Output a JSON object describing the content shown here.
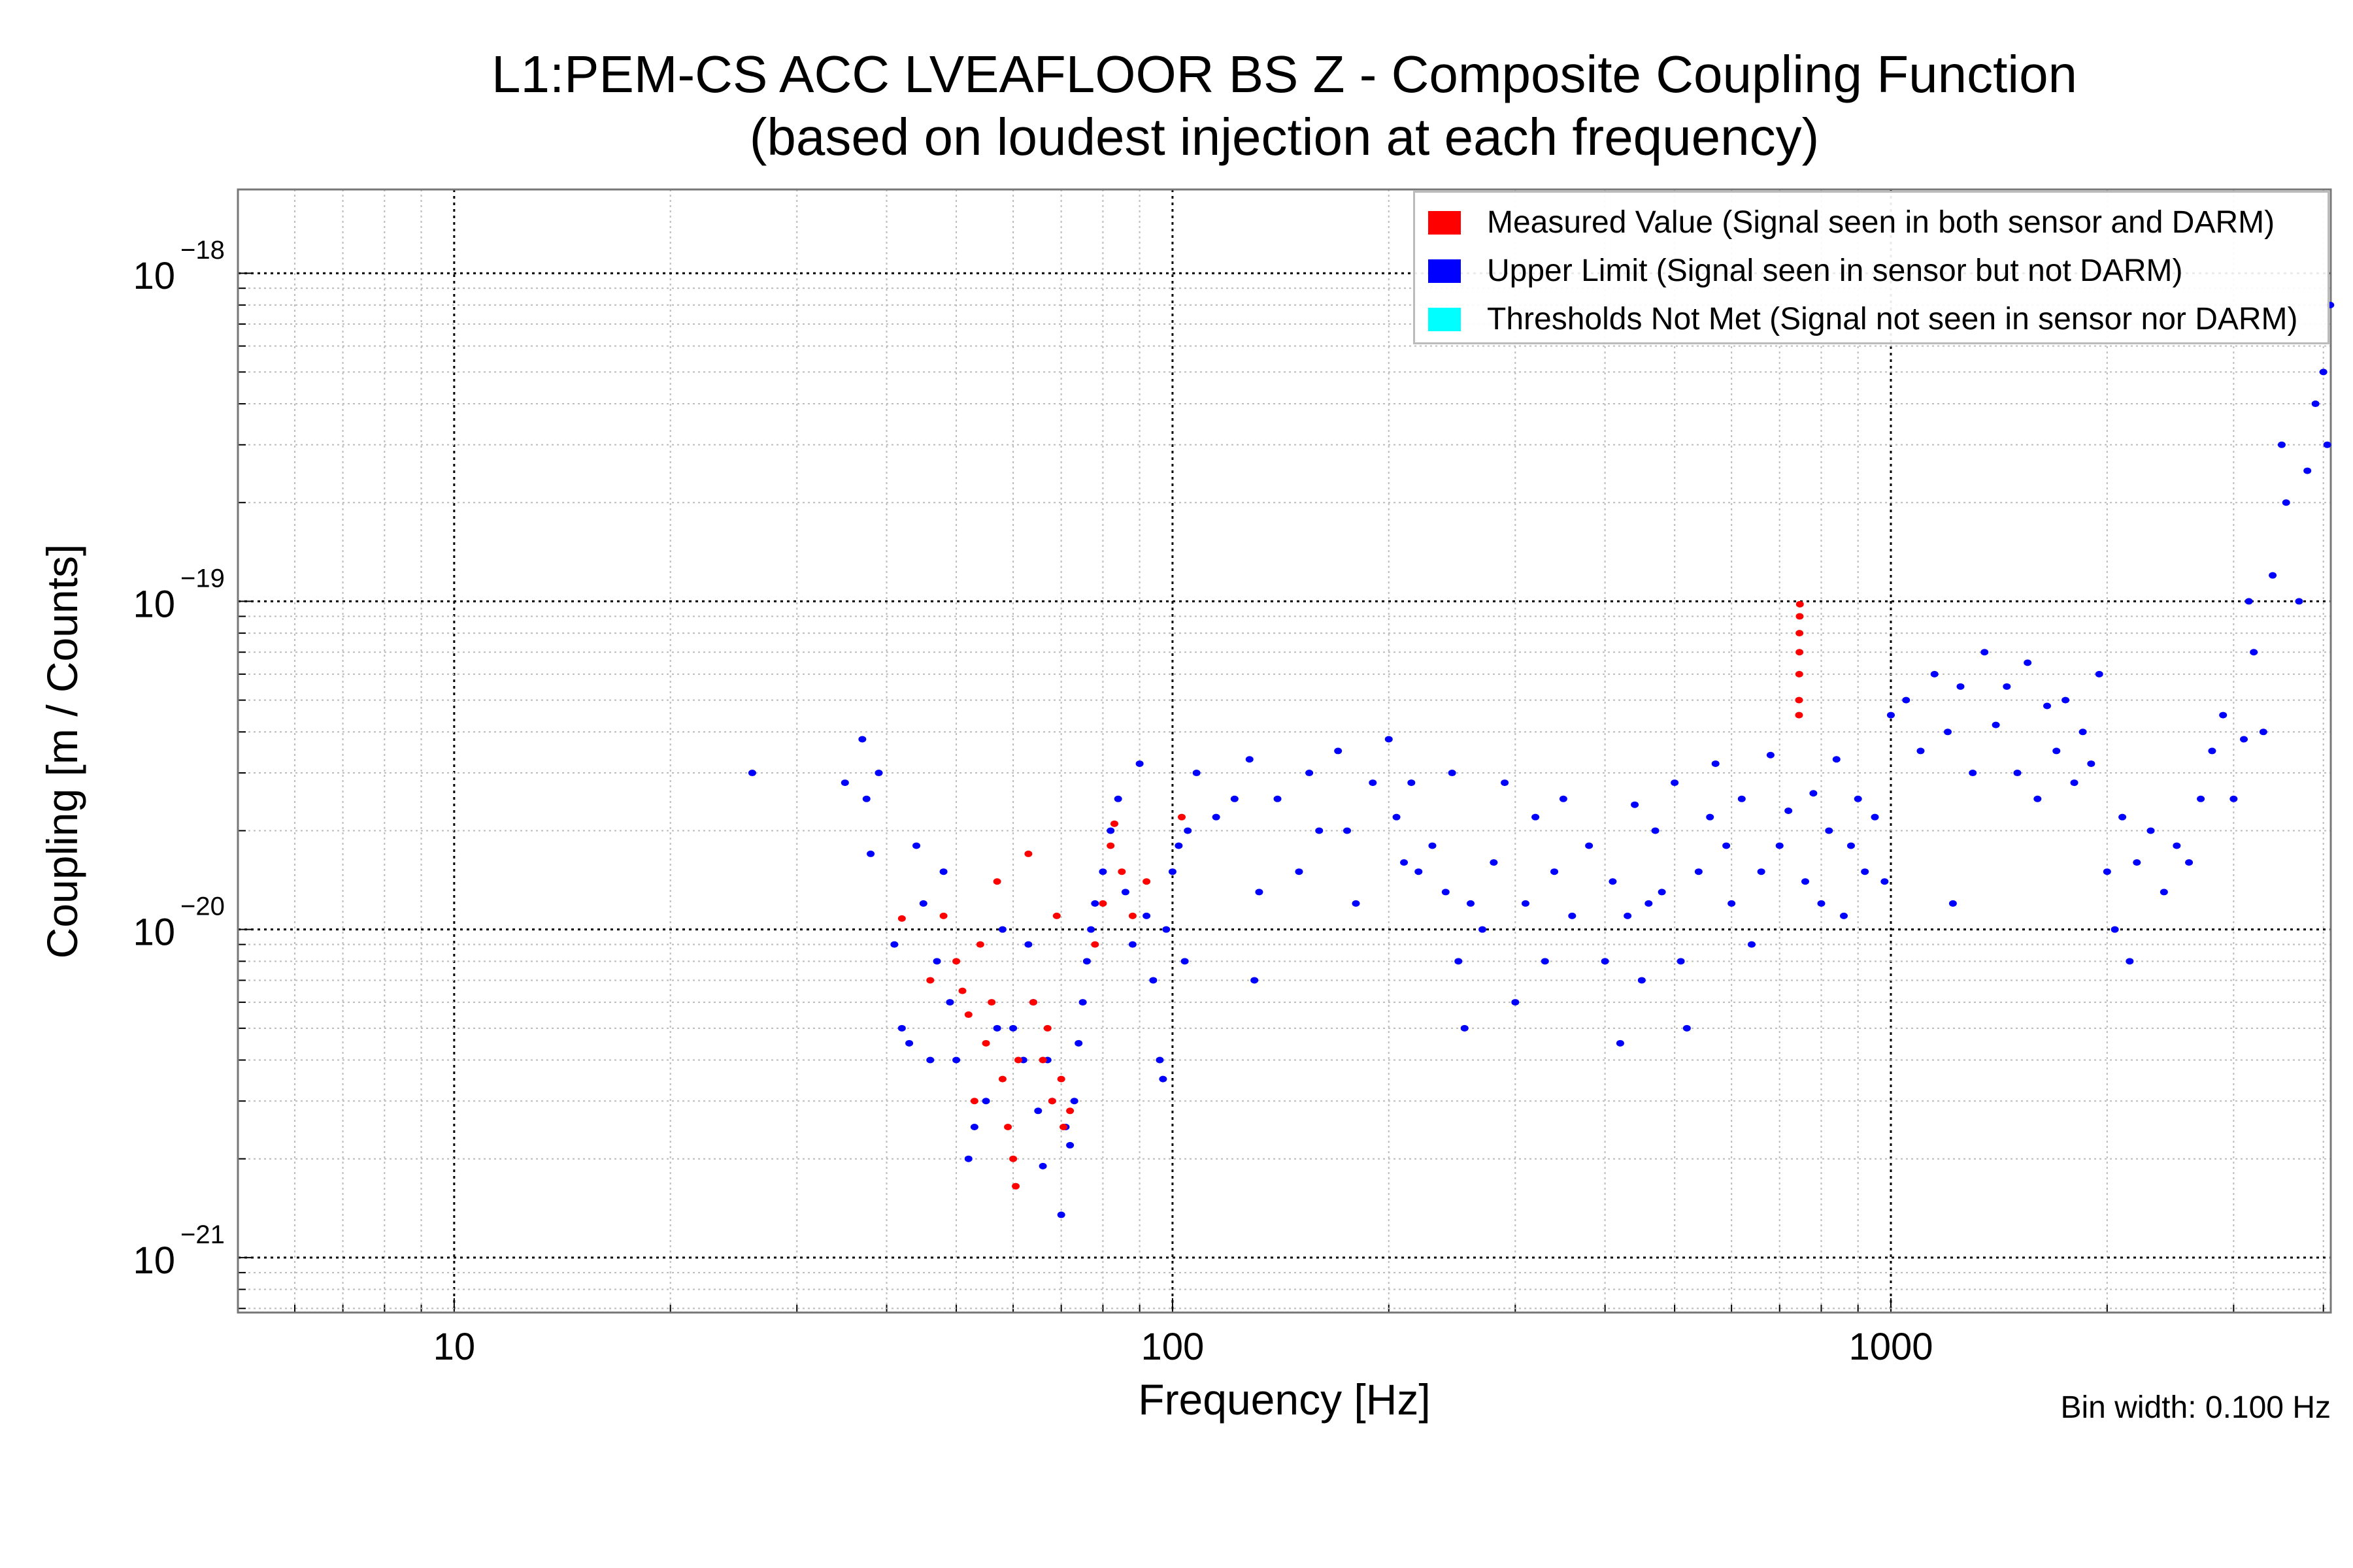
{
  "chart_data": {
    "type": "scatter",
    "title": [
      "L1:PEM-CS ACC LVEAFLOOR BS Z - Composite Coupling Function",
      "(based on loudest injection at each frequency)"
    ],
    "xlabel": "Frequency [Hz]",
    "ylabel": "Coupling [m / Counts]",
    "annotation": "Bin width: 0.100 Hz",
    "x_scale": "log",
    "y_scale": "log",
    "xlim": [
      5,
      4096
    ],
    "ylim": [
      6.8e-22,
      1.8e-18
    ],
    "x_ticks": [
      10,
      100,
      1000
    ],
    "x_tick_labels": [
      "10",
      "100",
      "1000"
    ],
    "y_ticks": [
      1e-18,
      1e-19,
      1e-20,
      1e-21
    ],
    "y_tick_labels": [
      {
        "base": "10",
        "exp": "−18"
      },
      {
        "base": "10",
        "exp": "−19"
      },
      {
        "base": "10",
        "exp": "−20"
      },
      {
        "base": "10",
        "exp": "−21"
      }
    ],
    "grid": true,
    "legend_position": "top-right",
    "series": [
      {
        "name": "Measured Value (Signal seen in both sensor and DARM)",
        "color": "#ff0000",
        "points": [
          [
            42,
            1.08e-20
          ],
          [
            46,
            7e-21
          ],
          [
            48,
            1.1e-20
          ],
          [
            50,
            8e-21
          ],
          [
            51,
            6.5e-21
          ],
          [
            52,
            5.5e-21
          ],
          [
            53,
            3e-21
          ],
          [
            54,
            9e-21
          ],
          [
            55,
            4.5e-21
          ],
          [
            56,
            6e-21
          ],
          [
            57,
            1.4e-20
          ],
          [
            58,
            3.5e-21
          ],
          [
            59,
            2.5e-21
          ],
          [
            60,
            2e-21
          ],
          [
            60.5,
            1.65e-21
          ],
          [
            61,
            4e-21
          ],
          [
            63,
            1.7e-20
          ],
          [
            64,
            6e-21
          ],
          [
            66,
            4e-21
          ],
          [
            67,
            5e-21
          ],
          [
            68,
            3e-21
          ],
          [
            69,
            1.1e-20
          ],
          [
            70,
            3.5e-21
          ],
          [
            70.5,
            2.5e-21
          ],
          [
            72,
            2.8e-21
          ],
          [
            78,
            9e-21
          ],
          [
            80,
            1.2e-20
          ],
          [
            82,
            1.8e-20
          ],
          [
            83,
            2.1e-20
          ],
          [
            85,
            1.5e-20
          ],
          [
            88,
            1.1e-20
          ],
          [
            92,
            1.4e-20
          ],
          [
            103,
            2.2e-20
          ],
          [
            745,
            4.5e-20
          ],
          [
            745,
            5e-20
          ],
          [
            745.5,
            6e-20
          ],
          [
            746,
            7e-20
          ],
          [
            746,
            8e-20
          ],
          [
            746.5,
            9e-20
          ],
          [
            747,
            9.8e-20
          ]
        ]
      },
      {
        "name": "Upper Limit (Signal seen in sensor but not DARM)",
        "color": "#0000ff",
        "points": [
          [
            26,
            3e-20
          ],
          [
            35,
            2.8e-20
          ],
          [
            37,
            3.8e-20
          ],
          [
            37.5,
            2.5e-20
          ],
          [
            38,
            1.7e-20
          ],
          [
            39,
            3e-20
          ],
          [
            41,
            9e-21
          ],
          [
            42,
            5e-21
          ],
          [
            43,
            4.5e-21
          ],
          [
            44,
            1.8e-20
          ],
          [
            45,
            1.2e-20
          ],
          [
            46,
            4e-21
          ],
          [
            47,
            8e-21
          ],
          [
            48,
            1.5e-20
          ],
          [
            49,
            6e-21
          ],
          [
            50,
            4e-21
          ],
          [
            52,
            2e-21
          ],
          [
            53,
            2.5e-21
          ],
          [
            55,
            3e-21
          ],
          [
            57,
            5e-21
          ],
          [
            58,
            1e-20
          ],
          [
            60,
            5e-21
          ],
          [
            62,
            4e-21
          ],
          [
            63,
            9e-21
          ],
          [
            64,
            6e-21
          ],
          [
            65,
            2.8e-21
          ],
          [
            66,
            1.9e-21
          ],
          [
            67,
            4e-21
          ],
          [
            68,
            3e-21
          ],
          [
            70,
            1.35e-21
          ],
          [
            71,
            2.5e-21
          ],
          [
            72,
            2.2e-21
          ],
          [
            73,
            3e-21
          ],
          [
            74,
            4.5e-21
          ],
          [
            75,
            6e-21
          ],
          [
            76,
            8e-21
          ],
          [
            77,
            1e-20
          ],
          [
            78,
            1.2e-20
          ],
          [
            80,
            1.5e-20
          ],
          [
            82,
            2e-20
          ],
          [
            84,
            2.5e-20
          ],
          [
            86,
            1.3e-20
          ],
          [
            88,
            9e-21
          ],
          [
            90,
            3.2e-20
          ],
          [
            92,
            1.1e-20
          ],
          [
            94,
            7e-21
          ],
          [
            96,
            4e-21
          ],
          [
            97,
            3.5e-21
          ],
          [
            98,
            1e-20
          ],
          [
            100,
            1.5e-20
          ],
          [
            102,
            1.8e-20
          ],
          [
            104,
            8e-21
          ],
          [
            105,
            2e-20
          ],
          [
            108,
            3e-20
          ],
          [
            115,
            2.2e-20
          ],
          [
            122,
            2.5e-20
          ],
          [
            128,
            3.3e-20
          ],
          [
            130,
            7e-21
          ],
          [
            132,
            1.3e-20
          ],
          [
            140,
            2.5e-20
          ],
          [
            150,
            1.5e-20
          ],
          [
            155,
            3e-20
          ],
          [
            160,
            2e-20
          ],
          [
            170,
            3.5e-20
          ],
          [
            175,
            2e-20
          ],
          [
            180,
            1.2e-20
          ],
          [
            190,
            2.8e-20
          ],
          [
            200,
            3.8e-20
          ],
          [
            205,
            2.2e-20
          ],
          [
            210,
            1.6e-20
          ],
          [
            215,
            2.8e-20
          ],
          [
            220,
            1.5e-20
          ],
          [
            230,
            1.8e-20
          ],
          [
            240,
            1.3e-20
          ],
          [
            245,
            3e-20
          ],
          [
            250,
            8e-21
          ],
          [
            255,
            5e-21
          ],
          [
            260,
            1.2e-20
          ],
          [
            270,
            1e-20
          ],
          [
            280,
            1.6e-20
          ],
          [
            290,
            2.8e-20
          ],
          [
            300,
            6e-21
          ],
          [
            310,
            1.2e-20
          ],
          [
            320,
            2.2e-20
          ],
          [
            330,
            8e-21
          ],
          [
            340,
            1.5e-20
          ],
          [
            350,
            2.5e-20
          ],
          [
            360,
            1.1e-20
          ],
          [
            380,
            1.8e-20
          ],
          [
            400,
            8e-21
          ],
          [
            410,
            1.4e-20
          ],
          [
            420,
            4.5e-21
          ],
          [
            430,
            1.1e-20
          ],
          [
            440,
            2.4e-20
          ],
          [
            450,
            7e-21
          ],
          [
            460,
            1.2e-20
          ],
          [
            470,
            2e-20
          ],
          [
            480,
            1.3e-20
          ],
          [
            500,
            2.8e-20
          ],
          [
            510,
            8e-21
          ],
          [
            520,
            5e-21
          ],
          [
            540,
            1.5e-20
          ],
          [
            560,
            2.2e-20
          ],
          [
            570,
            3.2e-20
          ],
          [
            590,
            1.8e-20
          ],
          [
            600,
            1.2e-20
          ],
          [
            620,
            2.5e-20
          ],
          [
            640,
            9e-21
          ],
          [
            660,
            1.5e-20
          ],
          [
            680,
            3.4e-20
          ],
          [
            700,
            1.8e-20
          ],
          [
            720,
            2.3e-20
          ],
          [
            760,
            1.4e-20
          ],
          [
            780,
            2.6e-20
          ],
          [
            800,
            1.2e-20
          ],
          [
            820,
            2e-20
          ],
          [
            840,
            3.3e-20
          ],
          [
            860,
            1.1e-20
          ],
          [
            880,
            1.8e-20
          ],
          [
            900,
            2.5e-20
          ],
          [
            920,
            1.5e-20
          ],
          [
            950,
            2.2e-20
          ],
          [
            980,
            1.4e-20
          ],
          [
            1000,
            4.5e-20
          ],
          [
            1050,
            5e-20
          ],
          [
            1100,
            3.5e-20
          ],
          [
            1150,
            6e-20
          ],
          [
            1200,
            4e-20
          ],
          [
            1220,
            1.2e-20
          ],
          [
            1250,
            5.5e-20
          ],
          [
            1300,
            3e-20
          ],
          [
            1350,
            7e-20
          ],
          [
            1400,
            4.2e-20
          ],
          [
            1450,
            5.5e-20
          ],
          [
            1500,
            3e-20
          ],
          [
            1550,
            6.5e-20
          ],
          [
            1600,
            2.5e-20
          ],
          [
            1650,
            4.8e-20
          ],
          [
            1700,
            3.5e-20
          ],
          [
            1750,
            5e-20
          ],
          [
            1800,
            2.8e-20
          ],
          [
            1850,
            4e-20
          ],
          [
            1900,
            3.2e-20
          ],
          [
            1950,
            6e-20
          ],
          [
            2000,
            1.5e-20
          ],
          [
            2050,
            1e-20
          ],
          [
            2100,
            2.2e-20
          ],
          [
            2150,
            8e-21
          ],
          [
            2200,
            1.6e-20
          ],
          [
            2300,
            2e-20
          ],
          [
            2400,
            1.3e-20
          ],
          [
            2500,
            1.8e-20
          ],
          [
            2600,
            1.6e-20
          ],
          [
            2700,
            2.5e-20
          ],
          [
            2800,
            3.5e-20
          ],
          [
            2900,
            4.5e-20
          ],
          [
            3000,
            2.5e-20
          ],
          [
            3100,
            3.8e-20
          ],
          [
            3150,
            1e-19
          ],
          [
            3200,
            7e-20
          ],
          [
            3300,
            4e-20
          ],
          [
            3400,
            1.2e-19
          ],
          [
            3500,
            3e-19
          ],
          [
            3550,
            2e-19
          ],
          [
            3700,
            1e-19
          ],
          [
            3800,
            2.5e-19
          ],
          [
            3900,
            4e-19
          ],
          [
            4000,
            5e-19
          ],
          [
            4050,
            3e-19
          ],
          [
            4090,
            8e-19
          ]
        ]
      },
      {
        "name": "Thresholds Not Met (Signal not seen in sensor nor DARM)",
        "color": "#00ffff",
        "points": []
      }
    ]
  }
}
